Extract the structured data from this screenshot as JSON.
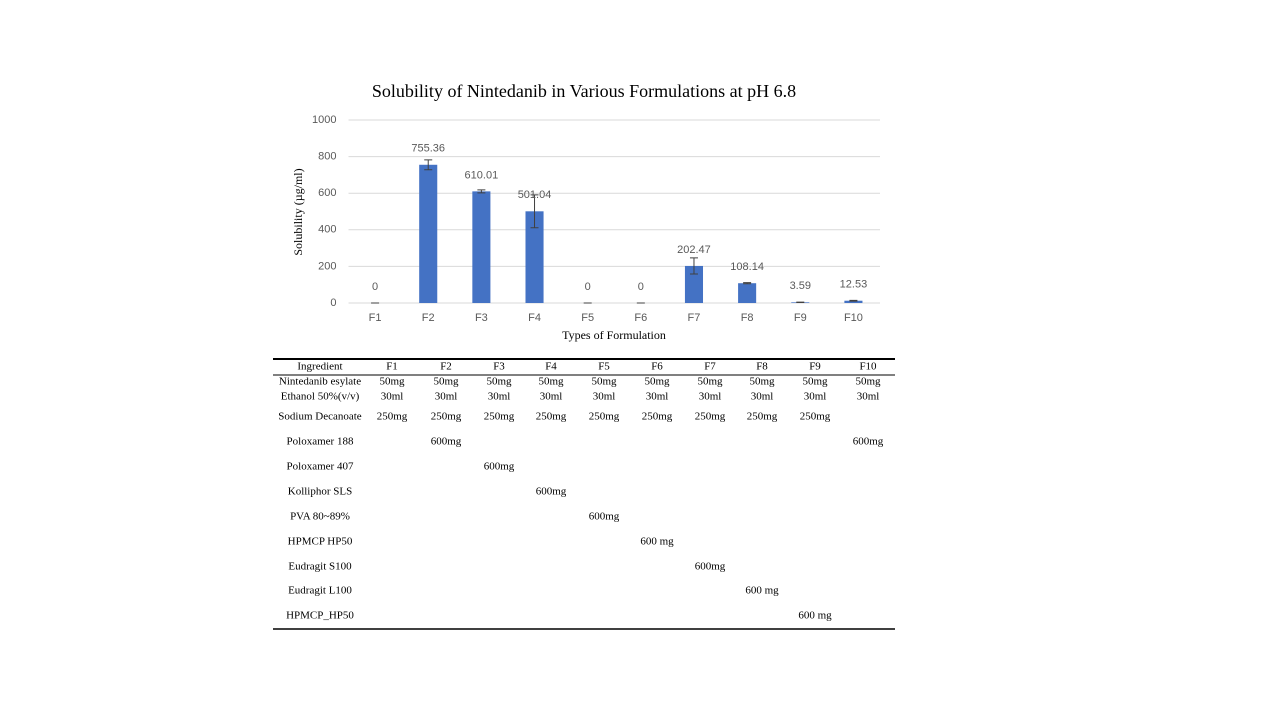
{
  "chart_data": {
    "type": "bar",
    "title": "Solubility of Nintedanib in Various Formulations at pH 6.8",
    "x_label": "Types of Formulation",
    "y_label": "Solubility (µg/ml)",
    "categories": [
      "F1",
      "F2",
      "F3",
      "F4",
      "F5",
      "F6",
      "F7",
      "F8",
      "F9",
      "F10"
    ],
    "values": [
      0,
      755.36,
      610.01,
      501.04,
      0,
      0,
      202.47,
      108.14,
      3.59,
      12.53
    ],
    "errors": [
      0,
      27,
      8,
      90,
      0,
      0,
      44,
      3,
      1,
      2
    ],
    "color": "#4472c4",
    "ylim": [
      0,
      1000
    ],
    "yticks": [
      0,
      200,
      400,
      600,
      800,
      1000
    ],
    "grid": true
  },
  "table": {
    "header": [
      "Ingredient",
      "F1",
      "F2",
      "F3",
      "F4",
      "F5",
      "F6",
      "F7",
      "F8",
      "F9",
      "F10"
    ],
    "rows": [
      [
        "Nintedanib esylate",
        "50mg",
        "50mg",
        "50mg",
        "50mg",
        "50mg",
        "50mg",
        "50mg",
        "50mg",
        "50mg",
        "50mg"
      ],
      [
        "Ethanol 50%(v/v)",
        "30ml",
        "30ml",
        "30ml",
        "30ml",
        "30ml",
        "30ml",
        "30ml",
        "30ml",
        "30ml",
        "30ml"
      ],
      [
        "Sodium Decanoate",
        "250mg",
        "250mg",
        "250mg",
        "250mg",
        "250mg",
        "250mg",
        "250mg",
        "250mg",
        "250mg",
        null
      ],
      [
        "Poloxamer 188",
        null,
        "600mg",
        null,
        null,
        null,
        null,
        null,
        null,
        null,
        "600mg"
      ],
      [
        "Poloxamer 407",
        null,
        null,
        "600mg",
        null,
        null,
        null,
        null,
        null,
        null,
        null
      ],
      [
        "Kolliphor SLS",
        null,
        null,
        null,
        "600mg",
        null,
        null,
        null,
        null,
        null,
        null
      ],
      [
        "PVA 80~89%",
        null,
        null,
        null,
        null,
        "600mg",
        null,
        null,
        null,
        null,
        null
      ],
      [
        "HPMCP HP50",
        null,
        null,
        null,
        null,
        null,
        "600 mg",
        null,
        null,
        null,
        null
      ],
      [
        "Eudragit S100",
        null,
        null,
        null,
        null,
        null,
        null,
        "600mg",
        null,
        null,
        null
      ],
      [
        "Eudragit L100",
        null,
        null,
        null,
        null,
        null,
        null,
        null,
        "600 mg",
        null,
        null
      ],
      [
        "HPMCP_HP50",
        null,
        null,
        null,
        null,
        null,
        null,
        null,
        null,
        "600 mg",
        null
      ]
    ]
  }
}
